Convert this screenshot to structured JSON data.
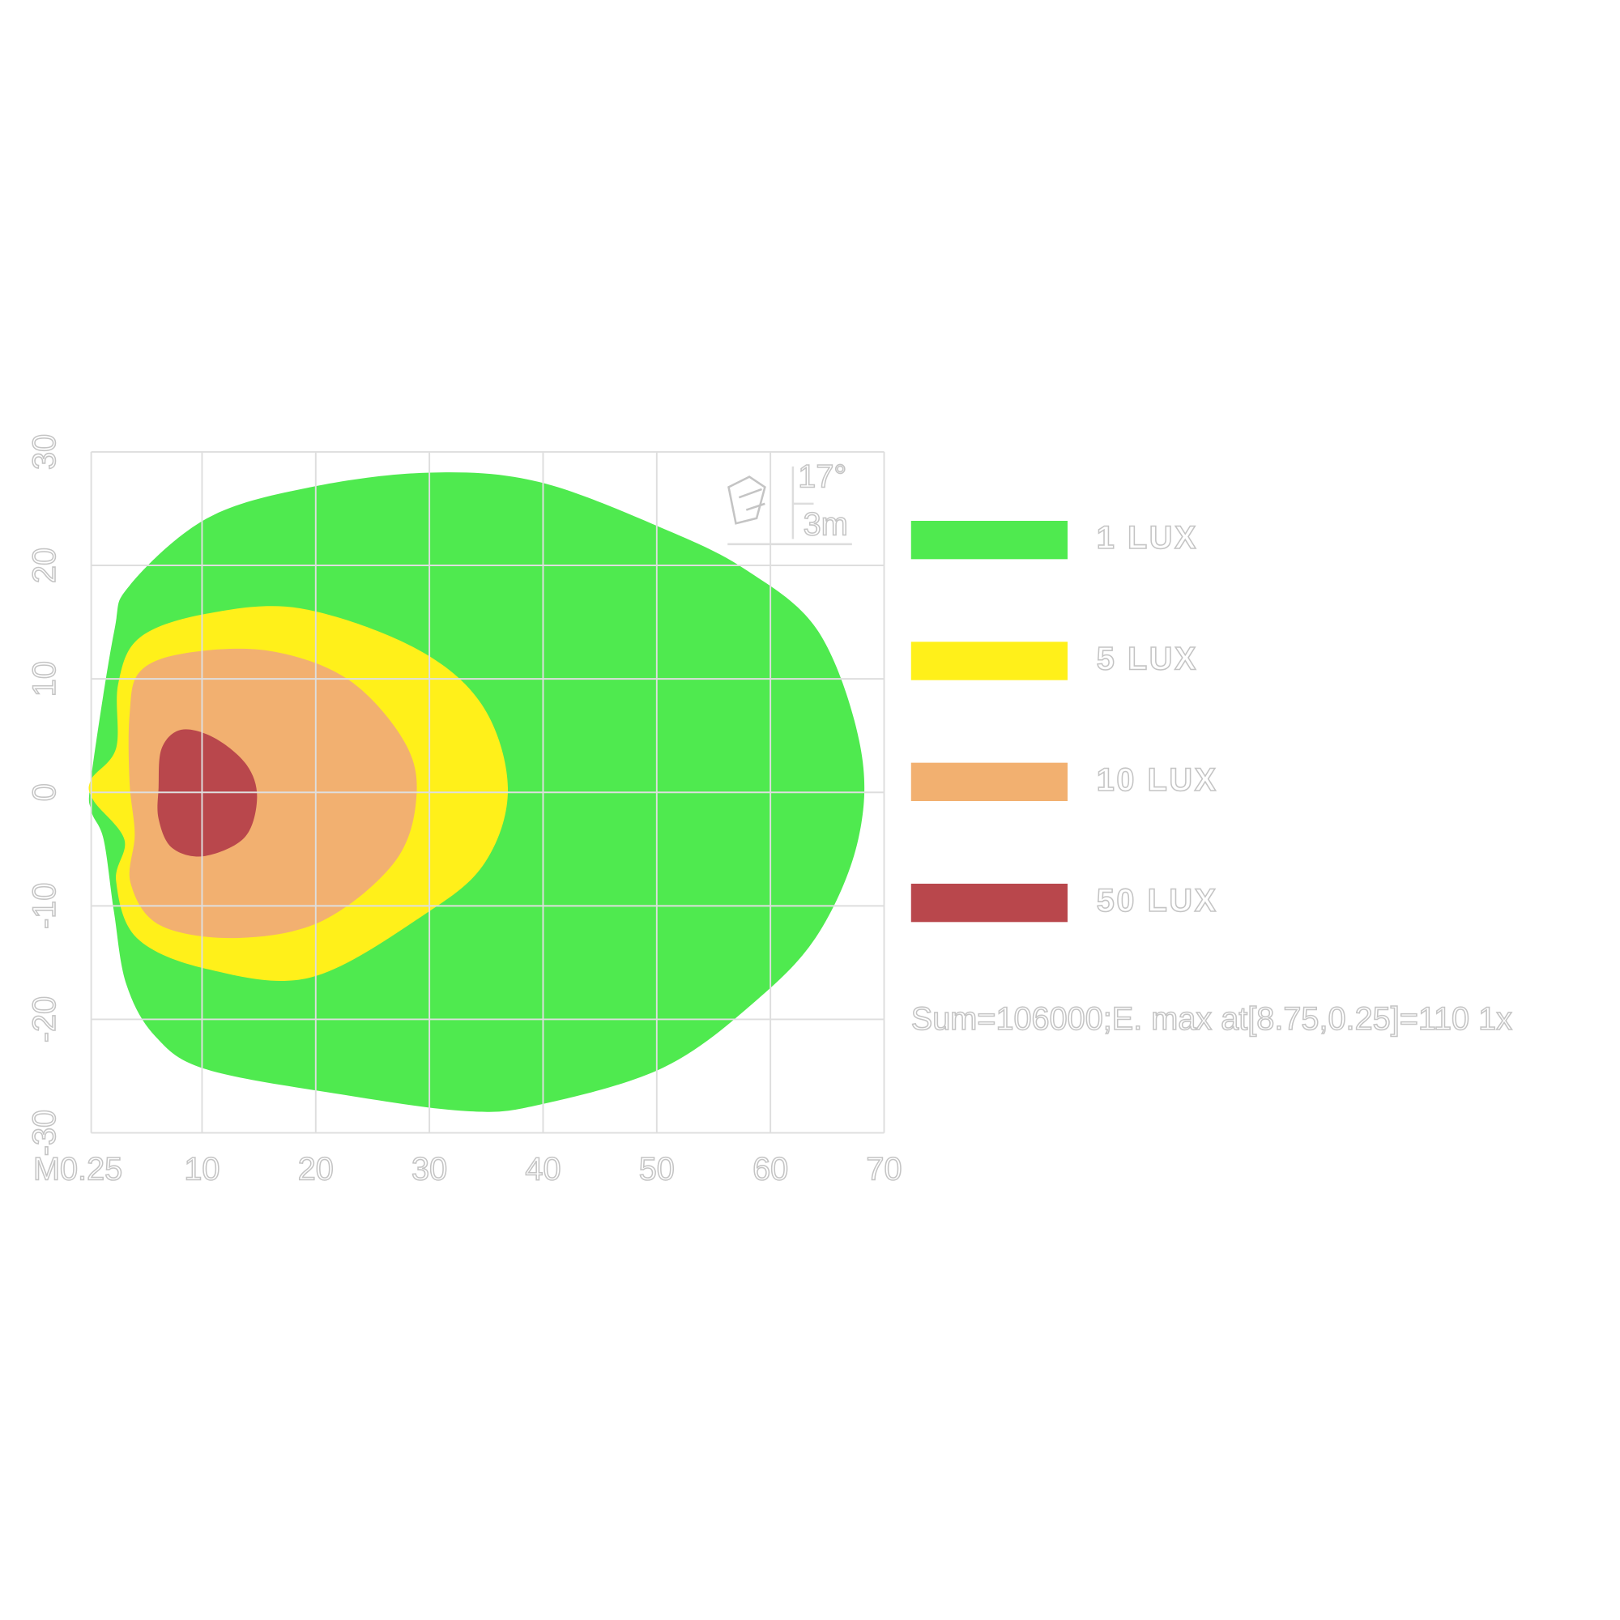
{
  "chart_data": {
    "type": "isolux",
    "x_label": "M",
    "xlim": [
      0.25,
      70
    ],
    "xticks": [
      0.25,
      10,
      20,
      30,
      40,
      50,
      60,
      70
    ],
    "ylim": [
      -30,
      30
    ],
    "yticks": [
      -30,
      -20,
      -10,
      0,
      10,
      20,
      30
    ],
    "grid": true,
    "series": [
      {
        "name": "1 LUX",
        "color": "#4fea4f"
      },
      {
        "name": "5 LUX",
        "color": "#fff01a"
      },
      {
        "name": "10 LUX",
        "color": "#f2b070"
      },
      {
        "name": "50 LUX",
        "color": "#b9474c"
      }
    ],
    "annotation": "Sum=106000;E. max at[8.75,0.25]=110 1x",
    "inset": {
      "angle": "17°",
      "height": "3m"
    }
  }
}
